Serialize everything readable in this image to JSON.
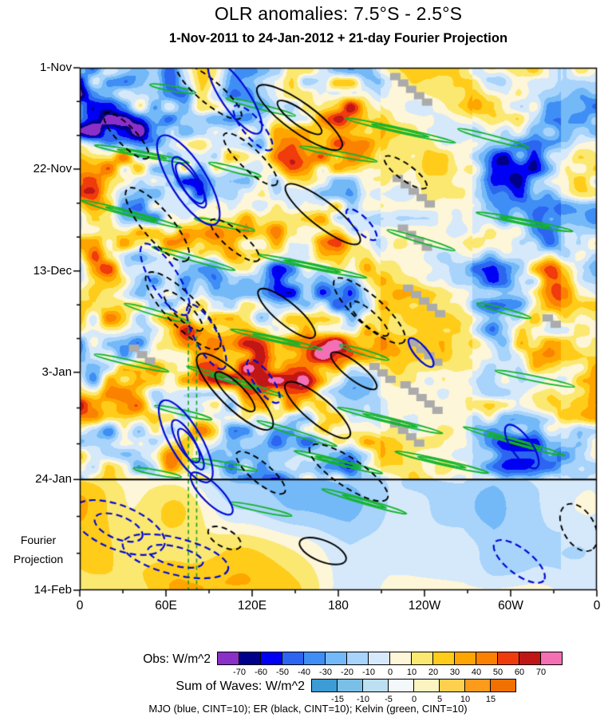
{
  "header": {
    "title": "OLR anomalies: 7.5°S - 2.5°S",
    "subtitle": "1-Nov-2011 to 24-Jan-2012 + 21-day Fourier Projection"
  },
  "chart_data": {
    "type": "heatmap",
    "title": "OLR anomalies: 7.5°S - 2.5°S",
    "subtitle": "1-Nov-2011 to 24-Jan-2012 + 21-day Fourier Projection",
    "x_axis": {
      "ticks": [
        "0",
        "60E",
        "120E",
        "180",
        "120W",
        "60W",
        "0"
      ]
    },
    "y_axis": {
      "ticks": [
        "1-Nov",
        "22-Nov",
        "13-Dec",
        "3-Jan",
        "24-Jan",
        "14-Feb"
      ],
      "annotation": "Fourier Projection",
      "divider_at": "24-Jan"
    },
    "obs_colorbar": {
      "label": "Obs: W/m^2",
      "ticks": [
        -70,
        -60,
        -50,
        -40,
        -30,
        -20,
        -10,
        0,
        10,
        20,
        30,
        40,
        50,
        60,
        70
      ],
      "colors": [
        "#8b2fc9",
        "#00008b",
        "#0000f5",
        "#2b65f0",
        "#3f8ef5",
        "#74b9f7",
        "#a8d3fa",
        "#d5e9fb",
        "#fdf6d8",
        "#fbe870",
        "#ffcc1a",
        "#ffa500",
        "#fb8200",
        "#f03b0c",
        "#c01616",
        "#f46fb4"
      ]
    },
    "waves_colorbar": {
      "label": "Sum of Waves: W/m^2",
      "ticks": [
        -15,
        -10,
        -5,
        0,
        5,
        10,
        15
      ],
      "colors": [
        "#3d9bd6",
        "#79bfe6",
        "#bcdff2",
        "#f2f8fb",
        "#fdf3c0",
        "#ffd04d",
        "#ff9b1a",
        "#f07000"
      ]
    },
    "contour_legend": {
      "mjo": {
        "label": "MJO",
        "color": "#0008d6",
        "cint": 10
      },
      "er": {
        "label": "ER",
        "color": "#000000",
        "cint": 10
      },
      "kelvin": {
        "label": "Kelvin",
        "color": "#12b42a",
        "cint": 10
      }
    },
    "legend_note": "MJO (blue, CINT=10); ER (black, CINT=10); Kelvin (green, CINT=10)"
  }
}
